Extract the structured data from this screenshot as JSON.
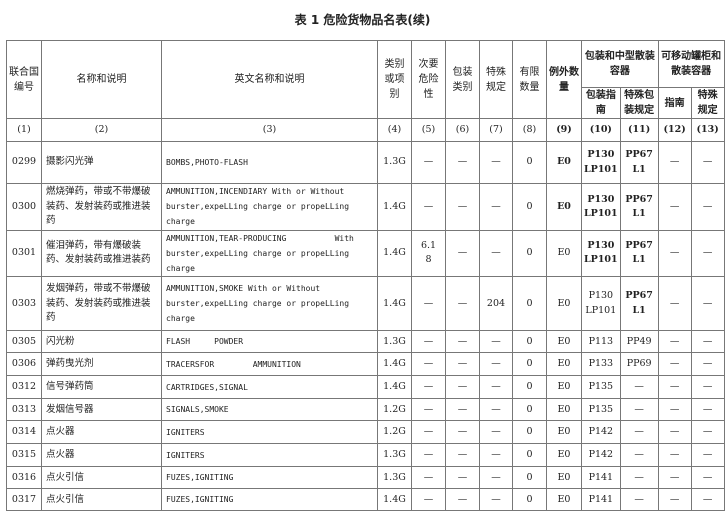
{
  "title": "表 1 危险货物品名表(续)",
  "headers": {
    "un": "联合国编号",
    "name": "名称和说明",
    "en": "英文名称和说明",
    "cls": "类别或项别",
    "sub": "次要危险性",
    "pg": "包装类别",
    "sp": "特殊规定",
    "lq": "有限数量",
    "eq": "例外数量",
    "pack_group": "包装和中型散装容器",
    "pack_inst": "包装指南",
    "pack_sp": "特殊包装规定",
    "tank_group": "可移动罐柜和散装容器",
    "tank_inst": "指南",
    "tank_sp": "特殊规定"
  },
  "col_numbers": [
    "(1)",
    "(2)",
    "(3)",
    "(4)",
    "(5)",
    "(6)",
    "(7)",
    "(8)",
    "(9)",
    "(10)",
    "(11)",
    "(12)",
    "(13)"
  ],
  "rows": [
    [
      "0299",
      "摄影闪光弹",
      "BOMBS,PHOTO-FLASH",
      "1.3G",
      "—",
      "—",
      "—",
      "0",
      "E0",
      "P130\nLP101",
      "PP67\nL1",
      "—",
      "—"
    ],
    [
      "0300",
      "燃烧弹药，带或不带爆破装药、发射装药或推进装药",
      "AMMUNITION,INCENDIARY With or Without\nburster,expeLLing charge or propeLLing charge",
      "1.4G",
      "—",
      "—",
      "—",
      "0",
      "E0",
      "P130\nLP101",
      "PP67\nL1",
      "—",
      "—"
    ],
    [
      "0301",
      "催泪弹药，带有爆破装药、发射装药或推进装药",
      "AMMUNITION,TEAR-PRODUCING          With\nburster,expeLLing charge or propeLLing charge",
      "1.4G",
      "6.1\n8",
      "—",
      "—",
      "0",
      "E0",
      "P130\nLP101",
      "PP67\nL1",
      "—",
      "—"
    ],
    [
      "0303",
      "发烟弹药，带或不带爆破装药、发射装药或推进装药",
      "AMMUNITION,SMOKE With or Without\nburster,expeLLing charge or propeLLing charge",
      "1.4G",
      "—",
      "—",
      "204",
      "0",
      "E0",
      "P130\nLP101",
      "PP67\nL1",
      "—",
      "—"
    ],
    [
      "0305",
      "闪光粉",
      "FLASH     POWDER",
      "1.3G",
      "—",
      "—",
      "—",
      "0",
      "E0",
      "P113",
      "PP49",
      "—",
      "—"
    ],
    [
      "0306",
      "弹药曳光剂",
      "TRACERSFOR        AMMUNITION",
      "1.4G",
      "—",
      "—",
      "—",
      "0",
      "E0",
      "P133",
      "PP69",
      "—",
      "—"
    ],
    [
      "0312",
      "信号弹药筒",
      "CARTRIDGES,SIGNAL",
      "1.4G",
      "—",
      "—",
      "—",
      "0",
      "E0",
      "P135",
      "—",
      "—",
      "—"
    ],
    [
      "0313",
      "发烟信号器",
      "SIGNALS,SMOKE",
      "1.2G",
      "—",
      "—",
      "—",
      "0",
      "E0",
      "P135",
      "—",
      "—",
      "—"
    ],
    [
      "0314",
      "点火器",
      "IGNITERS",
      "1.2G",
      "—",
      "—",
      "—",
      "0",
      "E0",
      "P142",
      "—",
      "—",
      "—"
    ],
    [
      "0315",
      "点火器",
      "IGNITERS",
      "1.3G",
      "—",
      "—",
      "—",
      "0",
      "E0",
      "P142",
      "—",
      "—",
      "—"
    ],
    [
      "0316",
      "点火引信",
      "FUZES,IGNITING",
      "1.3G",
      "—",
      "—",
      "—",
      "0",
      "E0",
      "P141",
      "—",
      "—",
      "—"
    ],
    [
      "0317",
      "点火引信",
      "FUZES,IGNITING",
      "1.4G",
      "—",
      "—",
      "—",
      "0",
      "E0",
      "P141",
      "—",
      "—",
      "—"
    ]
  ]
}
